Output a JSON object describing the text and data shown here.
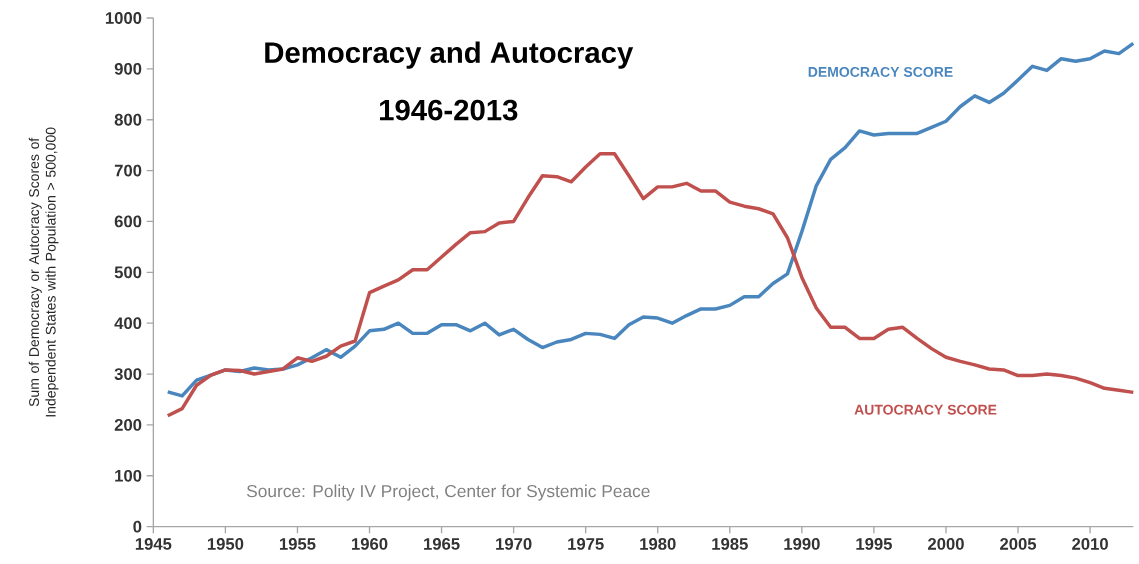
{
  "chart_data": {
    "type": "line",
    "title": "Democracy and Autocracy",
    "subtitle": "1946-2013",
    "ylabel": "Sum of Democracy or Autocracy Scores of Independent States with Population > 500,000",
    "annotations": [
      "Source: Polity IV Project, Center for Systemic Peace"
    ],
    "x": [
      1946,
      1947,
      1948,
      1949,
      1950,
      1951,
      1952,
      1953,
      1954,
      1955,
      1956,
      1957,
      1958,
      1959,
      1960,
      1961,
      1962,
      1963,
      1964,
      1965,
      1966,
      1967,
      1968,
      1969,
      1970,
      1971,
      1972,
      1973,
      1974,
      1975,
      1976,
      1977,
      1978,
      1979,
      1980,
      1981,
      1982,
      1983,
      1984,
      1985,
      1986,
      1987,
      1988,
      1989,
      1990,
      1991,
      1992,
      1993,
      1994,
      1995,
      1996,
      1997,
      1998,
      1999,
      2000,
      2001,
      2002,
      2003,
      2004,
      2005,
      2006,
      2007,
      2008,
      2009,
      2010,
      2011,
      2012,
      2013
    ],
    "series": [
      {
        "name": "DEMOCRACY SCORE",
        "color": "#4a86be",
        "values": [
          265,
          257,
          288,
          298,
          308,
          305,
          312,
          308,
          310,
          318,
          332,
          348,
          333,
          355,
          385,
          388,
          400,
          380,
          380,
          397,
          397,
          385,
          400,
          377,
          388,
          368,
          352,
          363,
          368,
          380,
          378,
          370,
          397,
          412,
          410,
          400,
          415,
          428,
          428,
          435,
          452,
          452,
          478,
          497,
          580,
          670,
          722,
          745,
          778,
          770,
          773,
          773,
          773,
          785,
          797,
          826,
          847,
          834,
          852,
          878,
          905,
          897,
          920,
          915,
          920,
          935,
          930,
          950
        ]
      },
      {
        "name": "AUTOCRACY SCORE",
        "color": "#c0504d",
        "values": [
          218,
          232,
          278,
          298,
          308,
          307,
          300,
          305,
          310,
          332,
          325,
          335,
          355,
          365,
          460,
          473,
          485,
          505,
          505,
          530,
          555,
          578,
          580,
          597,
          600,
          647,
          690,
          688,
          678,
          707,
          733,
          733,
          690,
          645,
          668,
          668,
          675,
          660,
          660,
          638,
          630,
          625,
          615,
          568,
          490,
          430,
          392,
          392,
          370,
          370,
          388,
          392,
          370,
          350,
          333,
          325,
          318,
          310,
          308,
          297,
          297,
          300,
          297,
          292,
          283,
          272,
          268,
          264
        ]
      }
    ],
    "xlim": [
      1945,
      2013
    ],
    "ylim": [
      0,
      1000
    ],
    "xticks": [
      1945,
      1950,
      1955,
      1960,
      1965,
      1970,
      1975,
      1980,
      1985,
      1990,
      1995,
      2000,
      2005,
      2010
    ],
    "yticks": [
      0,
      100,
      200,
      300,
      400,
      500,
      600,
      700,
      800,
      900,
      1000
    ],
    "line_style": "solid"
  }
}
